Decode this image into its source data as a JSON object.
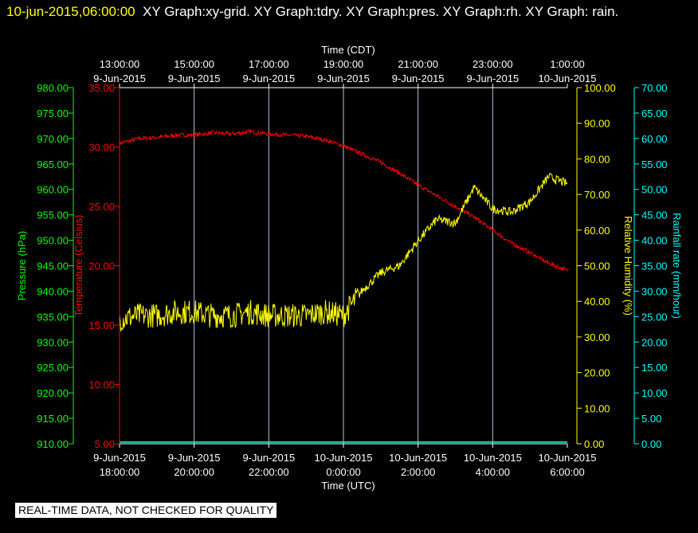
{
  "header": {
    "time": "10-jun-2015,06:00:00",
    "rest": "XY Graph:xy-grid.  XY Graph:tdry.  XY Graph:pres.  XY Graph:rh.  XY Graph: rain."
  },
  "footer": {
    "qc_text": "REAL-TIME DATA, NOT CHECKED FOR QUALITY"
  },
  "colors": {
    "pressure": "#00ff00",
    "temperature": "#ff0000",
    "humidity": "#ffff00",
    "rain": "#00ffff",
    "grid": "#b4c8dc",
    "frame": "#ffffff"
  },
  "chart_data": {
    "type": "line",
    "title": "",
    "top_axis": {
      "title": "Time (CDT)",
      "ticks": [
        [
          "13:00:00",
          "9-Jun-2015"
        ],
        [
          "15:00:00",
          "9-Jun-2015"
        ],
        [
          "17:00:00",
          "9-Jun-2015"
        ],
        [
          "19:00:00",
          "9-Jun-2015"
        ],
        [
          "21:00:00",
          "9-Jun-2015"
        ],
        [
          "23:00:00",
          "9-Jun-2015"
        ],
        [
          "1:00:00",
          "10-Jun-2015"
        ]
      ]
    },
    "bottom_axis": {
      "title": "Time (UTC)",
      "ticks": [
        [
          "9-Jun-2015",
          "18:00:00"
        ],
        [
          "9-Jun-2015",
          "20:00:00"
        ],
        [
          "9-Jun-2015",
          "22:00:00"
        ],
        [
          "10-Jun-2015",
          "0:00:00"
        ],
        [
          "10-Jun-2015",
          "2:00:00"
        ],
        [
          "10-Jun-2015",
          "4:00:00"
        ],
        [
          "10-Jun-2015",
          "6:00:00"
        ]
      ]
    },
    "x_range_utc": [
      "2015-06-09 18:00",
      "2015-06-10 06:00"
    ],
    "grid": "vertical",
    "y_axes": {
      "pressure": {
        "label": "Pressure (hPa)",
        "min": 910,
        "max": 980,
        "step": 5,
        "tick_labels": [
          "910.00",
          "915.00",
          "920.00",
          "925.00",
          "930.00",
          "935.00",
          "940.00",
          "945.00",
          "950.00",
          "955.00",
          "960.00",
          "965.00",
          "970.00",
          "975.00",
          "980.00"
        ]
      },
      "temperature": {
        "label": "Temperature (Celsius)",
        "min": 5,
        "max": 35,
        "step": 5,
        "tick_labels": [
          "5.00",
          "10.00",
          "15.00",
          "20.00",
          "25.00",
          "30.00",
          "35.00"
        ]
      },
      "humidity": {
        "label": "Relative Humidity (%)",
        "min": 0,
        "max": 100,
        "step": 10,
        "tick_labels": [
          "0.00",
          "10.00",
          "20.00",
          "30.00",
          "40.00",
          "50.00",
          "60.00",
          "70.00",
          "80.00",
          "90.00",
          "100.00"
        ]
      },
      "rain": {
        "label": "Rainfall rate (mm/hour)",
        "min": 0,
        "max": 70,
        "step": 5,
        "tick_labels": [
          "0.00",
          "5.00",
          "10.00",
          "15.00",
          "20.00",
          "25.00",
          "30.00",
          "35.00",
          "40.00",
          "45.00",
          "50.00",
          "55.00",
          "60.00",
          "65.00",
          "70.00"
        ]
      }
    },
    "series": [
      {
        "name": "Temperature",
        "axis": "temperature",
        "hours_since_start": [
          0,
          0.5,
          1,
          1.5,
          2,
          2.5,
          3,
          3.5,
          4,
          4.5,
          5,
          5.5,
          6,
          6.5,
          7,
          7.5,
          8,
          8.5,
          9,
          9.5,
          10,
          10.5,
          11,
          11.5,
          12
        ],
        "values": [
          30.3,
          30.7,
          30.8,
          31.0,
          31.0,
          31.2,
          31.1,
          31.3,
          31.1,
          31.0,
          30.9,
          30.6,
          30.1,
          29.4,
          28.7,
          27.8,
          26.8,
          25.9,
          25.0,
          24.1,
          23.0,
          21.9,
          21.1,
          20.2,
          19.6
        ]
      },
      {
        "name": "Relative Humidity",
        "axis": "humidity",
        "hours_since_start": [
          0,
          0.5,
          1,
          1.5,
          2,
          2.5,
          3,
          3.5,
          4,
          4.5,
          5,
          5.5,
          6,
          6.5,
          7,
          7.5,
          8,
          8.5,
          9,
          9.5,
          10,
          10.5,
          11,
          11.5,
          12
        ],
        "values": [
          35,
          36,
          36,
          37,
          37,
          36,
          36,
          37,
          36,
          36,
          36,
          37,
          36,
          43,
          48,
          50,
          57,
          63,
          62,
          72,
          66,
          65,
          68,
          75,
          73
        ]
      },
      {
        "name": "Pressure",
        "axis": "pressure",
        "hours_since_start": [
          0,
          12
        ],
        "values": [
          910.4,
          910.4
        ]
      },
      {
        "name": "Rainfall rate",
        "axis": "rain",
        "hours_since_start": [
          0,
          12
        ],
        "values": [
          0.3,
          0.3
        ]
      }
    ]
  }
}
